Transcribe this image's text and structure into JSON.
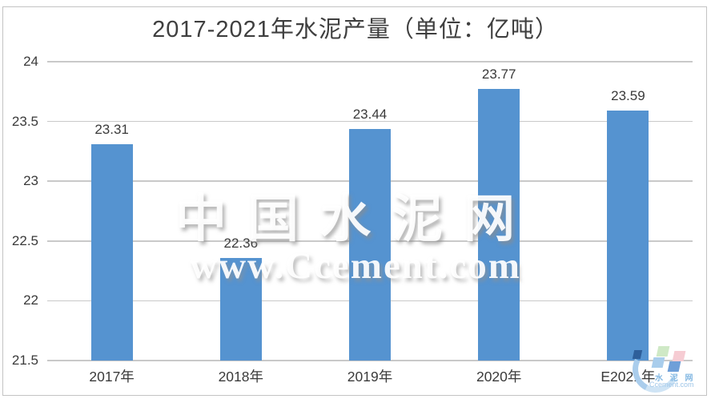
{
  "chart_data": {
    "type": "bar",
    "title": "2017-2021年水泥产量（单位：亿吨）",
    "categories": [
      "2017年",
      "2018年",
      "2019年",
      "2020年",
      "E2021年"
    ],
    "values": [
      23.31,
      22.36,
      23.44,
      23.77,
      23.59
    ],
    "value_labels": [
      "23.31",
      "22.36",
      "23.44",
      "23.77",
      "23.59"
    ],
    "ylim": [
      21.5,
      24
    ],
    "yticks": [
      21.5,
      22,
      22.5,
      23,
      23.5,
      24
    ],
    "grid": true,
    "legend_position": "none",
    "bar_color": "#5593d0"
  },
  "watermark": {
    "line1": "中国水泥网",
    "line2": "www.Ccement.com"
  },
  "logo": {
    "cn": "水 泥 网",
    "en": "Ccement.com"
  },
  "colors": {
    "bar": "#5593d0",
    "grid": "#c9c9c9",
    "text": "#3a3a3a",
    "border": "#c3c3c3",
    "background": "#ffffff"
  }
}
